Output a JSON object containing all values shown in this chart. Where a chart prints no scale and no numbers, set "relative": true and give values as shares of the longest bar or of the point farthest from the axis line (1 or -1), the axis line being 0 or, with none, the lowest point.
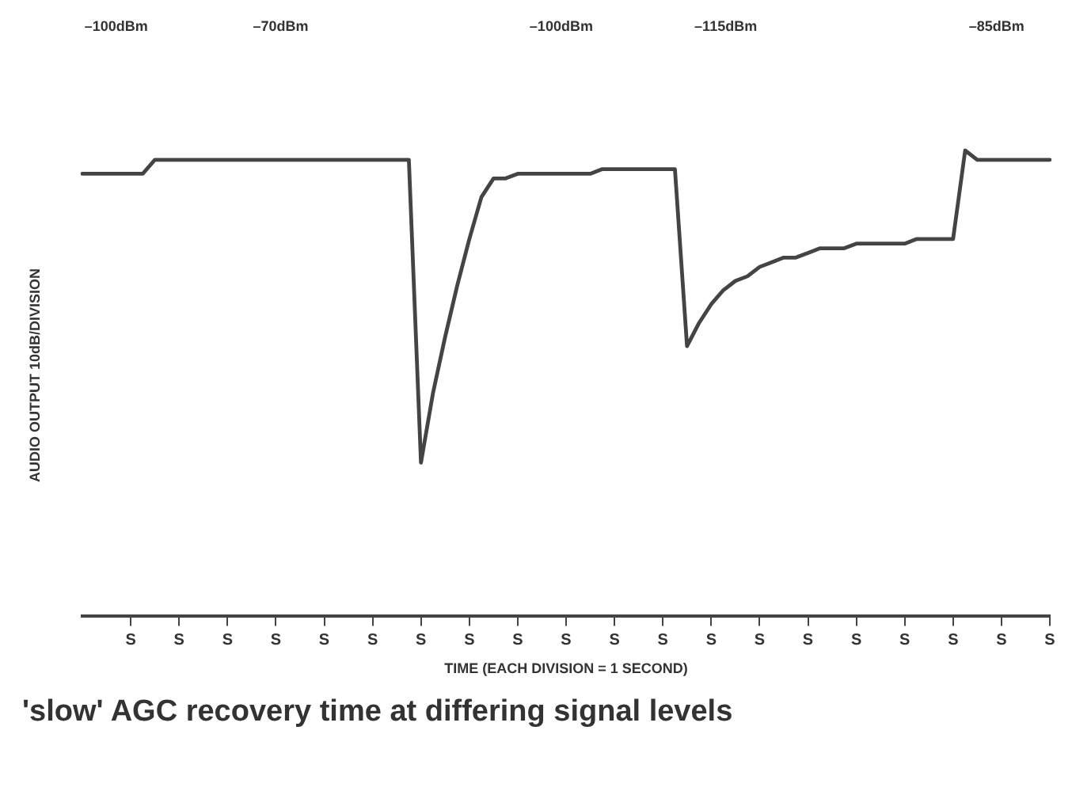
{
  "chart_data": {
    "type": "line",
    "title": "'slow' AGC recovery time at differing signal levels",
    "xlabel": "TIME (EACH DIVISION = 1 SECOND)",
    "ylabel": "AUDIO OUTPUT 10dB/DIVISION",
    "relative": true,
    "categories": [
      null,
      null,
      null,
      null,
      "S",
      null,
      null,
      null,
      "S",
      null,
      null,
      null,
      "S",
      null,
      null,
      null,
      "S",
      null,
      null,
      null,
      "S",
      null,
      null,
      null,
      "S",
      null,
      null,
      null,
      "S",
      null,
      null,
      null,
      "S",
      null,
      null,
      null,
      "S",
      null,
      null,
      null,
      "S",
      null,
      null,
      null,
      "S",
      null,
      null,
      null,
      "S",
      null,
      null,
      null,
      "S",
      null,
      null,
      null,
      "S",
      null,
      null,
      null,
      "S",
      null,
      null,
      null,
      "S",
      null,
      null,
      null,
      "S",
      null,
      null,
      null,
      "S",
      null,
      null,
      null,
      "S",
      null,
      null,
      null,
      "S"
    ],
    "series": [
      {
        "color": "#444444",
        "values": [
          0.95,
          0.95,
          0.95,
          0.95,
          0.95,
          0.95,
          0.98,
          0.98,
          0.98,
          0.98,
          0.98,
          0.98,
          0.98,
          0.98,
          0.98,
          0.98,
          0.98,
          0.98,
          0.98,
          0.98,
          0.98,
          0.98,
          0.98,
          0.98,
          0.98,
          0.98,
          0.98,
          0.98,
          0.33,
          0.48,
          0.6,
          0.71,
          0.81,
          0.9,
          0.94,
          0.94,
          0.95,
          0.95,
          0.95,
          0.95,
          0.95,
          0.95,
          0.95,
          0.96,
          0.96,
          0.96,
          0.96,
          0.96,
          0.96,
          0.96,
          0.58,
          0.63,
          0.67,
          0.7,
          0.72,
          0.73,
          0.75,
          0.76,
          0.77,
          0.77,
          0.78,
          0.79,
          0.79,
          0.79,
          0.8,
          0.8,
          0.8,
          0.8,
          0.8,
          0.81,
          0.81,
          0.81,
          0.81,
          1.0,
          0.98,
          0.98,
          0.98,
          0.98,
          0.98,
          0.98,
          0.98
        ]
      }
    ],
    "annotations": [
      "–100dBm",
      "–70dBm",
      "–100dBm",
      "–115dBm",
      "–85dBm"
    ],
    "grid": false,
    "legend": false,
    "marker": "none",
    "line_style": "solid"
  }
}
